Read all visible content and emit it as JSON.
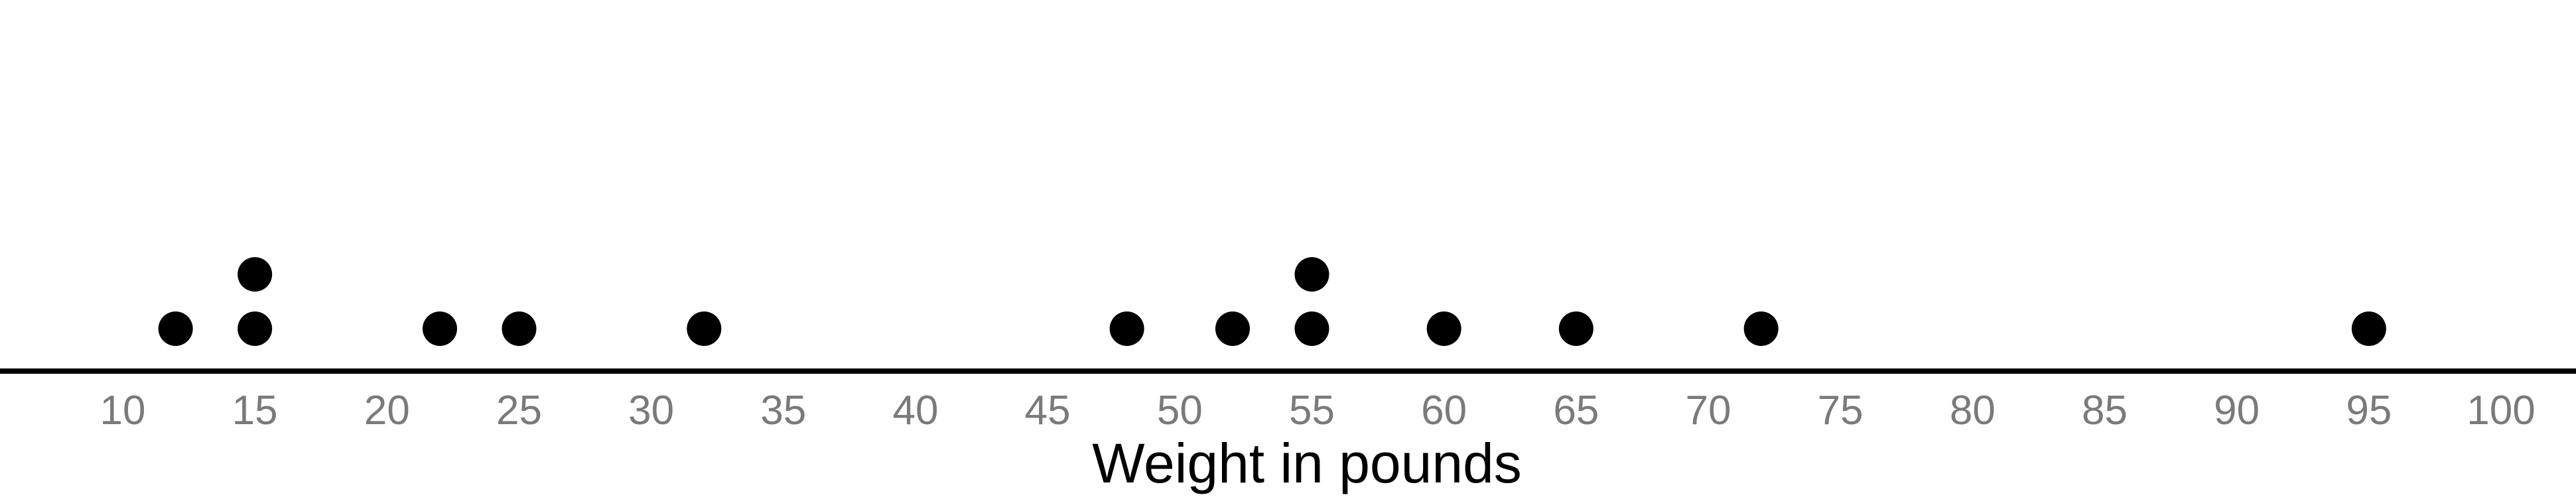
{
  "chart_data": {
    "type": "scatter",
    "subtype": "dot-plot",
    "title": "",
    "xlabel": "Weight in pounds",
    "ylabel": "",
    "xlim": [
      6,
      104
    ],
    "xticks": [
      10,
      15,
      20,
      25,
      30,
      35,
      40,
      45,
      50,
      55,
      60,
      65,
      70,
      75,
      80,
      85,
      90,
      95,
      100
    ],
    "grid": false,
    "legend": "none",
    "values": [
      12,
      15,
      15,
      22,
      25,
      32,
      48,
      52,
      55,
      55,
      60,
      65,
      72,
      95
    ],
    "colors": {
      "dot": "#000000",
      "axis": "#000000",
      "tick_label": "#7a7a7a"
    }
  }
}
